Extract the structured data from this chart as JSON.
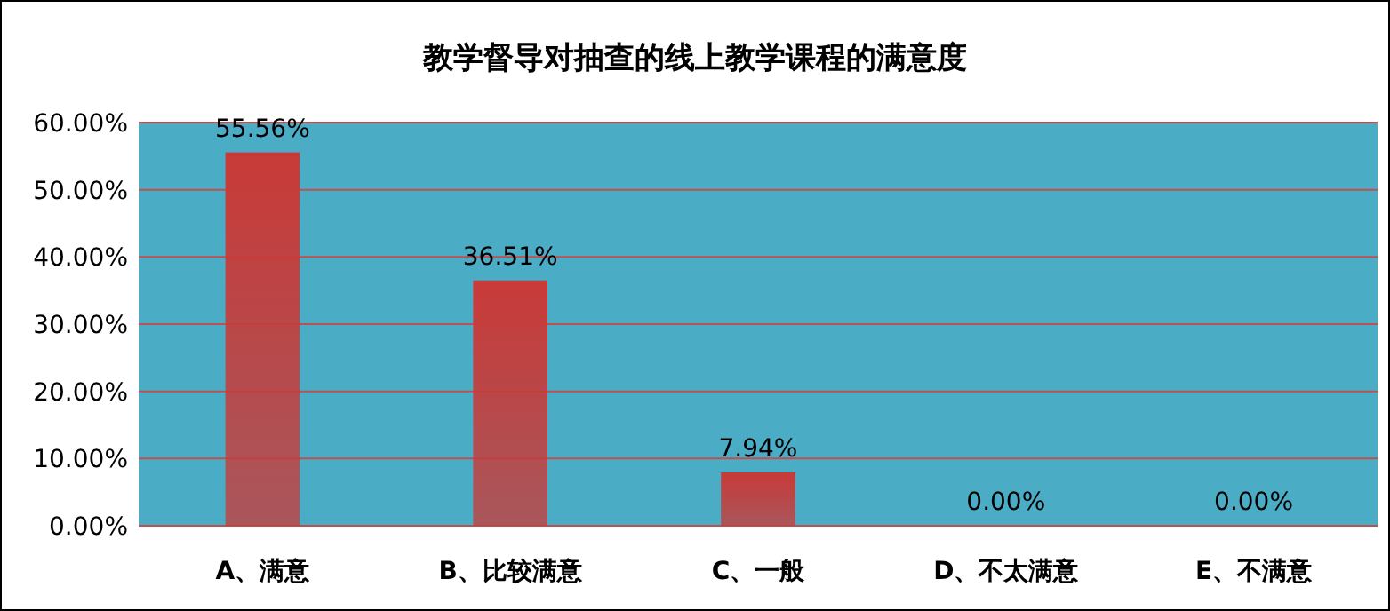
{
  "chart_data": {
    "type": "bar",
    "title": "教学督导对抽查的线上教学课程的满意度",
    "categories": [
      "A、满意",
      "B、比较满意",
      "C、一般",
      "D、不太满意",
      "E、不满意"
    ],
    "values": [
      55.56,
      36.51,
      7.94,
      0,
      0
    ],
    "value_labels": [
      "55.56%",
      "36.51%",
      "7.94%",
      "0.00%",
      "0.00%"
    ],
    "color": "#c83a38",
    "ylim": [
      0,
      60
    ],
    "yticks": [
      {
        "value": 0,
        "label": "0.00%"
      },
      {
        "value": 10,
        "label": "10.00%"
      },
      {
        "value": 20,
        "label": "20.00%"
      },
      {
        "value": 30,
        "label": "30.00%"
      },
      {
        "value": 40,
        "label": "40.00%"
      },
      {
        "value": 50,
        "label": "50.00%"
      },
      {
        "value": 60,
        "label": "60.00%"
      }
    ],
    "grid": "y"
  }
}
